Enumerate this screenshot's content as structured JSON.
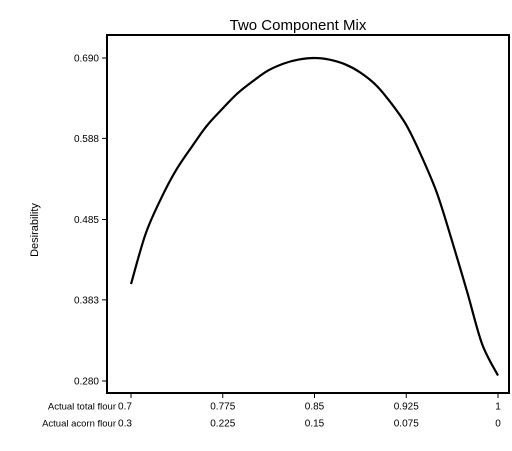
{
  "chart_data": {
    "type": "line",
    "title": "Two Component Mix",
    "ylabel": "Desirability",
    "ylim": [
      0.28,
      0.69
    ],
    "xlim": [
      0.7,
      1.0
    ],
    "y_ticks": [
      "0.280",
      "0.383",
      "0.485",
      "0.588",
      "0.690"
    ],
    "x_axis_rows": [
      {
        "label": "Actual total flour",
        "ticks": [
          "0.7",
          "0.775",
          "0.85",
          "0.925",
          "1"
        ]
      },
      {
        "label": "Actual acorn flour",
        "ticks": [
          "0.3",
          "0.225",
          "0.15",
          "0.075",
          "0"
        ]
      }
    ],
    "series": [
      {
        "x": [
          0.7,
          0.712,
          0.725,
          0.737,
          0.75,
          0.762,
          0.775,
          0.787,
          0.8,
          0.812,
          0.825,
          0.837,
          0.85,
          0.862,
          0.875,
          0.887,
          0.9,
          0.912,
          0.925,
          0.937,
          0.95,
          0.962,
          0.975,
          0.987,
          1.0
        ],
        "y": [
          0.403,
          0.467,
          0.513,
          0.548,
          0.578,
          0.604,
          0.626,
          0.645,
          0.661,
          0.674,
          0.683,
          0.688,
          0.69,
          0.688,
          0.682,
          0.672,
          0.656,
          0.634,
          0.605,
          0.567,
          0.519,
          0.46,
          0.392,
          0.327,
          0.287
        ]
      }
    ],
    "grid": false,
    "line_color": "#000000"
  }
}
